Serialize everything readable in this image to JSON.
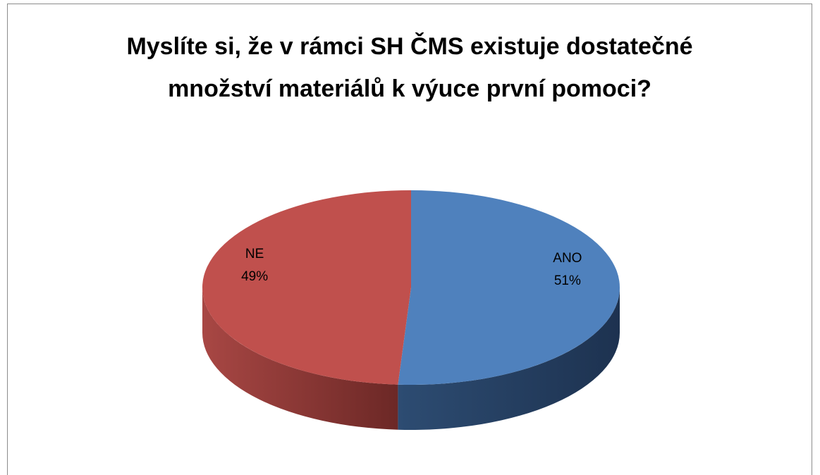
{
  "chart_data": {
    "type": "pie3d",
    "title": "Myslíte si, že v rámci SH ČMS existuje dostatečné množství materiálů k výuce první pomoci?",
    "categories": [
      "ANO",
      "NE"
    ],
    "values": [
      51,
      49
    ],
    "value_labels": [
      "51%",
      "49%"
    ],
    "colors": [
      "#4f81bd",
      "#c0504d"
    ]
  }
}
